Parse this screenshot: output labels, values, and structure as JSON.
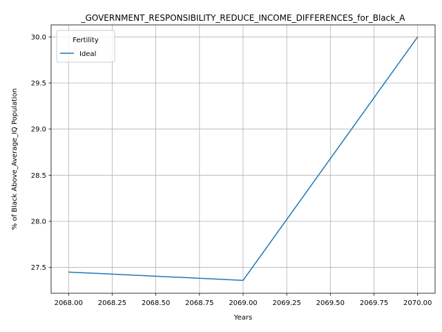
{
  "chart_data": {
    "type": "line",
    "title": "_GOVERNMENT_RESPONSIBILITY_REDUCE_INCOME_DIFFERENCES_for_Black_A",
    "xlabel": "Years",
    "ylabel": "% of Black Above_Average_IQ Population",
    "xlim": [
      2067.9,
      2070.1
    ],
    "ylim": [
      27.22,
      30.13
    ],
    "xticks": [
      2068.0,
      2068.25,
      2068.5,
      2068.75,
      2069.0,
      2069.25,
      2069.5,
      2069.75,
      2070.0
    ],
    "xtick_labels": [
      "2068.00",
      "2068.25",
      "2068.50",
      "2068.75",
      "2069.00",
      "2069.25",
      "2069.50",
      "2069.75",
      "2070.00"
    ],
    "yticks": [
      27.5,
      28.0,
      28.5,
      29.0,
      29.5,
      30.0
    ],
    "ytick_labels": [
      "27.5",
      "28.0",
      "28.5",
      "29.0",
      "29.5",
      "30.0"
    ],
    "grid": true,
    "legend": {
      "title": "Fertility",
      "position": "top-left"
    },
    "series": [
      {
        "name": "Ideal",
        "color": "#1f77b4",
        "x": [
          2068,
          2069,
          2070
        ],
        "y": [
          27.45,
          27.36,
          30.0
        ]
      }
    ]
  }
}
